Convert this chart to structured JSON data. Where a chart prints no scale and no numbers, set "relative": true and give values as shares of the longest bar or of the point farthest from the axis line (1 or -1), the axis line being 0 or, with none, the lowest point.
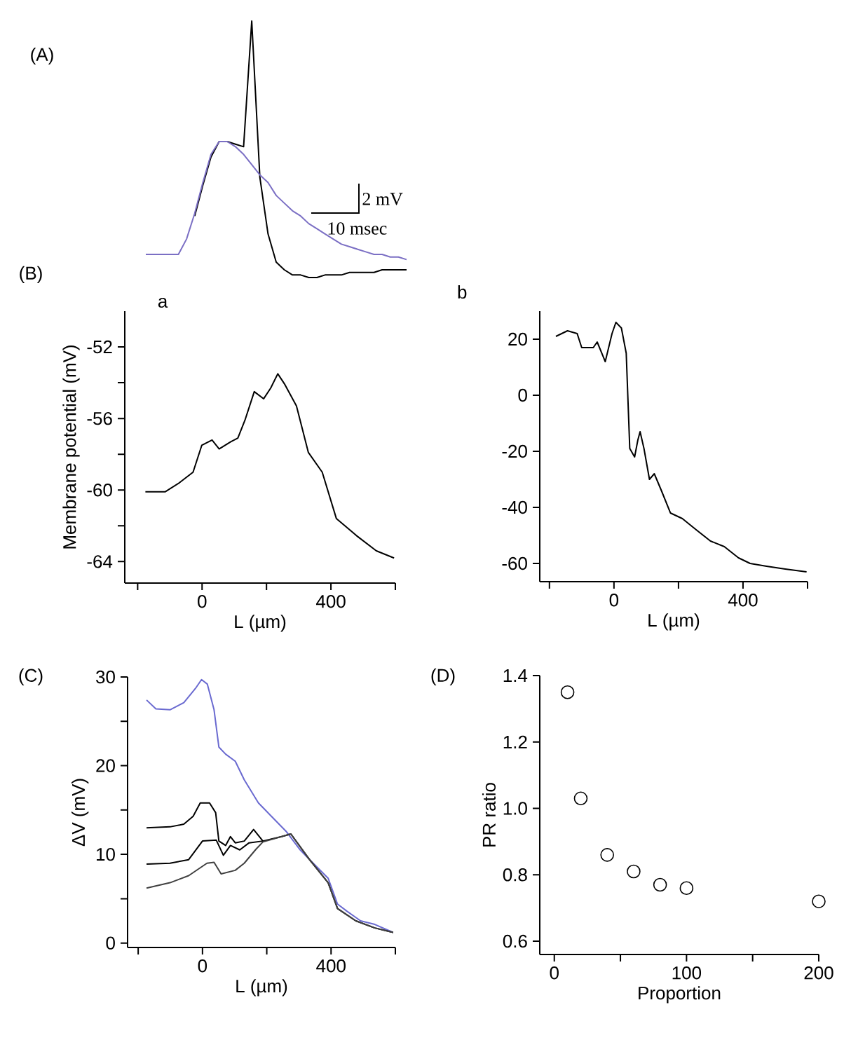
{
  "chart_data": [
    {
      "type": "line",
      "relative": true,
      "annotations": [
        "(A)",
        "2 mV",
        "10 msec"
      ],
      "categories": [
        null,
        null,
        null,
        null,
        null,
        null,
        null,
        null,
        null,
        null,
        null,
        null,
        null,
        null,
        null,
        null,
        null,
        null,
        null,
        null,
        null,
        null,
        null,
        null,
        null,
        null,
        null,
        null,
        null,
        null,
        null,
        null,
        null
      ],
      "series": [
        {
          "color": "#000000",
          "values": [
            null,
            null,
            null,
            null,
            null,
            null,
            0.24,
            0.36,
            0.47,
            0.53,
            0.53,
            0.52,
            0.51,
            1,
            0.39,
            0.17,
            0.06,
            0.03,
            0.01,
            0.01,
            0,
            0,
            0.01,
            0.01,
            0.01,
            0.02,
            0.02,
            0.02,
            0.02,
            0.03,
            0.03,
            0.03,
            0.03
          ]
        },
        {
          "color": "#7b6fc4",
          "values": [
            0.09,
            0.09,
            0.09,
            0.09,
            0.09,
            0.15,
            0.25,
            0.37,
            0.48,
            0.53,
            0.53,
            0.51,
            0.48,
            0.44,
            0.4,
            0.37,
            0.32,
            0.29,
            0.26,
            0.24,
            0.21,
            0.19,
            0.17,
            0.15,
            0.13,
            0.12,
            0.11,
            0.1,
            0.09,
            0.09,
            0.08,
            0.08,
            0.07
          ]
        }
      ]
    },
    {
      "type": "line",
      "title": "a",
      "xlabel": "L (µm)",
      "ylabel": "Membrane potential (mV)",
      "annotations": [
        "(B)"
      ],
      "xlim": [
        -240,
        600
      ],
      "ylim": [
        -65.2,
        -50
      ],
      "xticks": [
        {
          "value": -200,
          "label": null
        },
        0,
        {
          "value": 200,
          "label": null
        },
        400,
        {
          "value": 600,
          "label": null
        }
      ],
      "yticks": [
        {
          "value": -64,
          "label": "-64"
        },
        {
          "value": -62,
          "label": null
        },
        {
          "value": -60,
          "label": "-60"
        },
        {
          "value": -58,
          "label": null
        },
        {
          "value": -56,
          "label": "-56"
        },
        {
          "value": -54,
          "label": null
        },
        {
          "value": -52,
          "label": "-52"
        }
      ],
      "series": [
        {
          "color": "#000000",
          "x": [
            -176,
            -115,
            -71,
            -28,
            -1,
            31,
            53,
            89,
            111,
            133,
            162,
            191,
            213,
            235,
            257,
            293,
            330,
            373,
            417,
            483,
            541,
            596
          ],
          "values": [
            -60.1,
            -60.1,
            -59.6,
            -59,
            -57.5,
            -57.2,
            -57.7,
            -57.3,
            -57.1,
            -56.1,
            -54.5,
            -54.9,
            -54.3,
            -53.5,
            -54.1,
            -55.3,
            -57.9,
            -59,
            -61.6,
            -62.6,
            -63.4,
            -63.8
          ]
        }
      ]
    },
    {
      "type": "line",
      "title": "b",
      "xlabel": "L (µm)",
      "xlim": [
        -230,
        600
      ],
      "ylim": [
        -66.5,
        30
      ],
      "xticks": [
        {
          "value": -200,
          "label": null
        },
        0,
        {
          "value": 200,
          "label": null
        },
        400,
        {
          "value": 600,
          "label": null
        }
      ],
      "yticks": [
        -60,
        -40,
        -20,
        0,
        20
      ],
      "series": [
        {
          "color": "#000000",
          "x": [
            -180,
            -144,
            -114,
            -100,
            -64,
            -52,
            -27,
            -6,
            6,
            23,
            38,
            49,
            64,
            74,
            81,
            93,
            110,
            125,
            147,
            175,
            212,
            255,
            299,
            342,
            386,
            422,
            473,
            531,
            597
          ],
          "values": [
            21,
            23,
            22,
            17,
            17,
            19,
            12,
            22,
            26,
            24,
            15,
            -19,
            -22,
            -16,
            -13,
            -19,
            -30,
            -28,
            -34,
            -42,
            -44,
            -48,
            -52,
            -54,
            -58,
            -60,
            -61,
            -62,
            -63
          ]
        }
      ]
    },
    {
      "type": "line",
      "xlabel": "L (µm)",
      "ylabel": "ΔV (mV)",
      "annotations": [
        "(C)"
      ],
      "xlim": [
        -233,
        600
      ],
      "ylim": [
        -0.5,
        30
      ],
      "xticks": [
        {
          "value": -200,
          "label": null
        },
        0,
        {
          "value": 200,
          "label": null
        },
        400,
        {
          "value": 600,
          "label": null
        }
      ],
      "yticks": [
        0,
        {
          "value": 5,
          "label": null
        },
        10,
        {
          "value": 15,
          "label": null
        },
        20,
        {
          "value": 25,
          "label": null
        },
        30
      ],
      "series": [
        {
          "color": "#6a6ad0",
          "x": [
            -174,
            -145,
            -101,
            -58,
            -22,
            -3,
            15,
            36,
            51,
            72,
            102,
            130,
            174,
            217,
            260,
            304,
            347,
            391,
            420,
            449,
            492,
            536,
            593
          ],
          "values": [
            27.4,
            26.4,
            26.3,
            27.1,
            28.7,
            29.7,
            29.2,
            26.3,
            22.1,
            21.3,
            20.5,
            18.4,
            15.8,
            14.2,
            12.6,
            10.5,
            8.9,
            7.3,
            4.4,
            3.6,
            2.5,
            2.1,
            1.2
          ]
        },
        {
          "color": "#000000",
          "x": [
            -174,
            -101,
            -58,
            -29,
            -7,
            22,
            41,
            51,
            72,
            87,
            102,
            130,
            159,
            188,
            246,
            275,
            333,
            391,
            420,
            477,
            536,
            593
          ],
          "values": [
            13,
            13.1,
            13.4,
            14.3,
            15.8,
            15.8,
            14.7,
            11.5,
            11,
            12,
            11.3,
            11.5,
            12.8,
            11.5,
            12,
            12.3,
            9.4,
            6.8,
            3.9,
            2.5,
            1.7,
            1.2
          ]
        },
        {
          "color": "#000000",
          "x": [
            -174,
            -101,
            -43,
            0,
            43,
            65,
            87,
            116,
            145,
            188
          ],
          "values": [
            8.9,
            9,
            9.4,
            11.5,
            11.6,
            9.9,
            11,
            10.5,
            11.3,
            11.5
          ]
        },
        {
          "color": "#404040",
          "x": [
            -174,
            -101,
            -43,
            14,
            36,
            58,
            102,
            130,
            167,
            188,
            246,
            275,
            333,
            391,
            420,
            477,
            536,
            593
          ],
          "values": [
            6.2,
            6.8,
            7.6,
            9,
            9.1,
            7.8,
            8.2,
            9,
            10.6,
            11.4,
            12,
            12.3,
            9.4,
            6.8,
            3.9,
            2.5,
            1.7,
            1.2
          ]
        }
      ]
    },
    {
      "type": "scatter",
      "xlabel": "Proportion",
      "ylabel": "PR ratio",
      "annotations": [
        "(D)"
      ],
      "marker": "circle",
      "color": "#000000",
      "xlim": [
        -11,
        200
      ],
      "ylim": [
        0.56,
        1.4
      ],
      "xticks": [
        0,
        {
          "value": 50,
          "label": null
        },
        100,
        {
          "value": 150,
          "label": null
        },
        200
      ],
      "yticks": [
        0.6,
        0.8,
        {
          "value": 1,
          "label": "1.0"
        },
        1.2,
        1.4
      ],
      "x": [
        10,
        20,
        40,
        60,
        80,
        100,
        200
      ],
      "values": [
        1.35,
        1.03,
        0.86,
        0.81,
        0.77,
        0.76,
        0.72
      ]
    }
  ]
}
